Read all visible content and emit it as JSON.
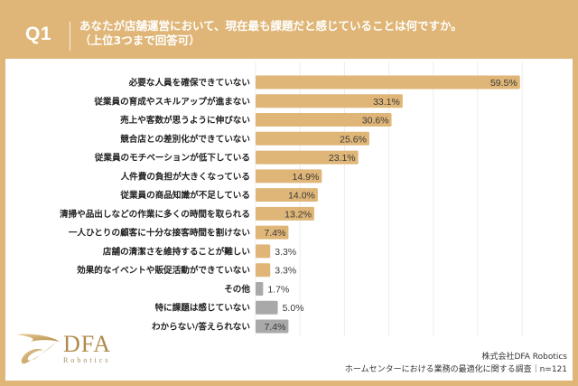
{
  "header": {
    "q_label": "Q1",
    "title_line1": "あなたが店舗運営において、現在最も課題だと感じていることは何ですか。",
    "title_line2": "（上位3つまで回答可）"
  },
  "colors": {
    "frame": "#dfb677",
    "bar_main": "#dfb677",
    "bar_other": "#a9a9a9",
    "grid": "#ececec"
  },
  "chart_data": {
    "type": "bar",
    "orientation": "horizontal",
    "title": "あなたが店舗運営において、現在最も課題だと感じていることは何ですか。（上位3つまで回答可）",
    "xlabel": "",
    "ylabel": "",
    "xlim": [
      0,
      60
    ],
    "grid": true,
    "grid_step": 10,
    "value_suffix": "%",
    "categories": [
      "必要な人員を確保できていない",
      "従業員の育成やスキルアップが進まない",
      "売上や客数が思うように伸びない",
      "競合店との差別化ができていない",
      "従業員のモチベーションが低下している",
      "人件費の負担が大きくなっている",
      "従業員の商品知識が不足している",
      "清掃や品出しなどの作業に多くの時間を取られる",
      "一人ひとりの顧客に十分な接客時間を割けない",
      "店舗の清潔さを維持することが難しい",
      "効果的なイベントや販促活動ができていない",
      "その他",
      "特に課題は感じていない",
      "わからない/答えられない"
    ],
    "values": [
      59.5,
      33.1,
      30.6,
      25.6,
      23.1,
      14.9,
      14.0,
      13.2,
      7.4,
      3.3,
      3.3,
      1.7,
      5.0,
      7.4
    ],
    "labels": [
      "59.5%",
      "33.1%",
      "30.6%",
      "25.6%",
      "23.1%",
      "14.9%",
      "14.0%",
      "13.2%",
      "7.4%",
      "3.3%",
      "3.3%",
      "1.7%",
      "5.0%",
      "7.4%"
    ],
    "bar_group": [
      "main",
      "main",
      "main",
      "main",
      "main",
      "main",
      "main",
      "main",
      "main",
      "main",
      "main",
      "other",
      "other",
      "other"
    ]
  },
  "logo": {
    "name": "DFA",
    "sub": "Robotics"
  },
  "source": {
    "company": "株式会社DFA Robotics",
    "survey": "ホームセンターにおける業務の最適化に関する調査｜n=121"
  }
}
